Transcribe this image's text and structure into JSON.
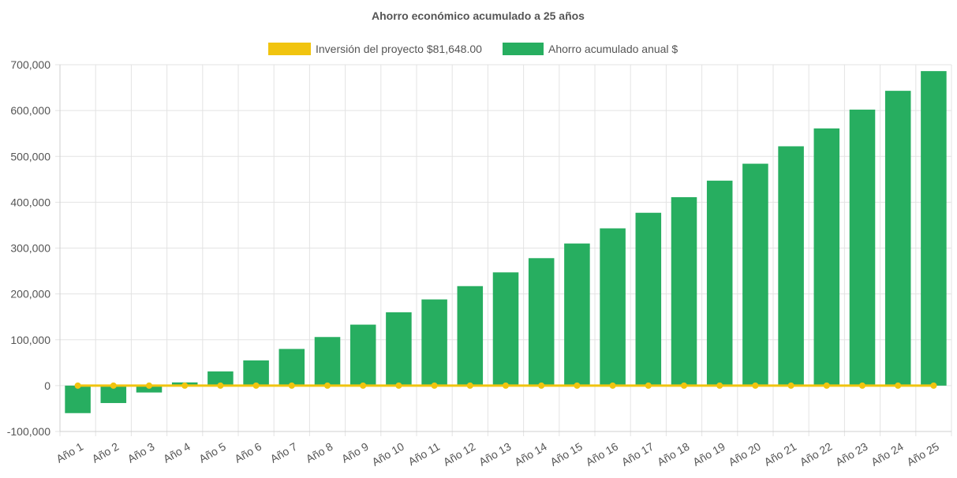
{
  "chart_data": {
    "type": "bar",
    "title": "Ahorro económico acumulado a 25 años",
    "categories": [
      "Año 1",
      "Año 2",
      "Año 3",
      "Año 4",
      "Año 5",
      "Año 6",
      "Año 7",
      "Año 8",
      "Año 9",
      "Año 10",
      "Año 11",
      "Año 12",
      "Año 13",
      "Año 14",
      "Año 15",
      "Año 16",
      "Año 17",
      "Año 18",
      "Año 19",
      "Año 20",
      "Año 21",
      "Año 22",
      "Año 23",
      "Año 24",
      "Año 25"
    ],
    "series": [
      {
        "name": "Inversión del proyecto $81,648.00",
        "type": "line",
        "color": "#f1c40f",
        "values": [
          0,
          0,
          0,
          0,
          0,
          0,
          0,
          0,
          0,
          0,
          0,
          0,
          0,
          0,
          0,
          0,
          0,
          0,
          0,
          0,
          0,
          0,
          0,
          0,
          0
        ]
      },
      {
        "name": "Ahorro acumulado anual $",
        "type": "bar",
        "color": "#27ae60",
        "values": [
          -60000,
          -38000,
          -15000,
          7000,
          31000,
          55000,
          80000,
          106000,
          133000,
          160000,
          188000,
          217000,
          247000,
          278000,
          310000,
          343000,
          377000,
          411000,
          447000,
          484000,
          522000,
          561000,
          602000,
          643000,
          686000
        ]
      }
    ],
    "ylim": [
      -100000,
      700000
    ],
    "yticks": [
      "-100,000",
      "0",
      "100,000",
      "200,000",
      "300,000",
      "400,000",
      "500,000",
      "600,000",
      "700,000"
    ],
    "ytick_values": [
      -100000,
      0,
      100000,
      200000,
      300000,
      400000,
      500000,
      600000,
      700000
    ],
    "grid": true,
    "legend_position": "top"
  }
}
